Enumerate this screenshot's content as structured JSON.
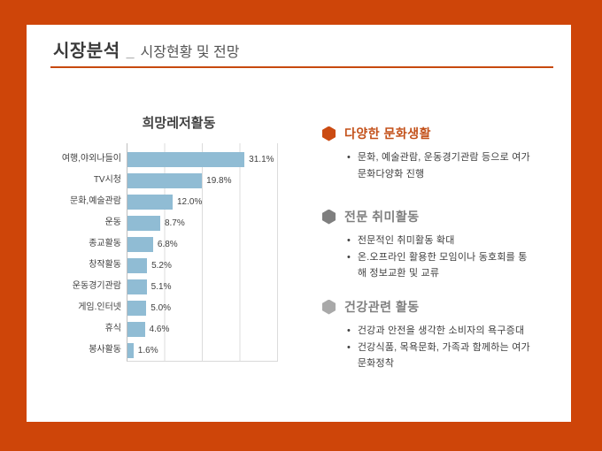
{
  "page_title": {
    "main": "시장분석",
    "separator": "_",
    "sub": "시장현황 및 전망"
  },
  "chart_data": {
    "type": "bar",
    "orientation": "horizontal",
    "title": "희망레저활동",
    "categories": [
      "여행,야외나들이",
      "TV시청",
      "문화,예술관람",
      "운동",
      "종교활동",
      "창작활동",
      "운동경기관람",
      "게임.인터넷",
      "휴식",
      "봉사활동"
    ],
    "values": [
      31.1,
      19.8,
      12.0,
      8.7,
      6.8,
      5.2,
      5.1,
      5.0,
      4.6,
      1.6
    ],
    "value_labels": [
      "31.1%",
      "19.8%",
      "12.0%",
      "8.7%",
      "6.8%",
      "5.2%",
      "5.1%",
      "5.0%",
      "4.6%",
      "1.6%"
    ],
    "xlabel": "",
    "ylabel": "",
    "xlim": [
      0,
      40
    ],
    "gridline_interval": 10,
    "grid": true,
    "legend": false,
    "axis_tick_labels_visible": false,
    "bar_color": "#90BCD4"
  },
  "sections": [
    {
      "icon": "hexagon-icon",
      "icon_color": "#CB4B12",
      "heading": "다양한 문화생활",
      "heading_color": "#C3511A",
      "bullets": [
        "문화, 예술관람, 운동경기관람 등으로 여가\n문화다양화 진행"
      ]
    },
    {
      "icon": "hexagon-icon",
      "icon_color": "#7F7F7F",
      "heading": "전문 취미활동",
      "heading_color": "#7F7F7F",
      "bullets": [
        "전문적인 취미활동 확대",
        "온.오프라인 활용한 모임이나 동호회를 통\n해 정보교환 및 교류"
      ]
    },
    {
      "icon": "hexagon-icon",
      "icon_color": "#A9A9A9",
      "heading": "건강관련 활동",
      "heading_color": "#7F7F7F",
      "bullets": [
        "건강과 안전을 생각한 소비자의 욕구증대",
        "건강식품, 목욕문화, 가족과 함께하는 여가\n문화정착"
      ]
    }
  ],
  "colors": {
    "frame": "#CE4509",
    "title_rule": "#C7490F",
    "bar": "#90BCD4",
    "gridline": "#DCDCDC",
    "axis": "#BFBFBF",
    "body_text": "#404040"
  }
}
